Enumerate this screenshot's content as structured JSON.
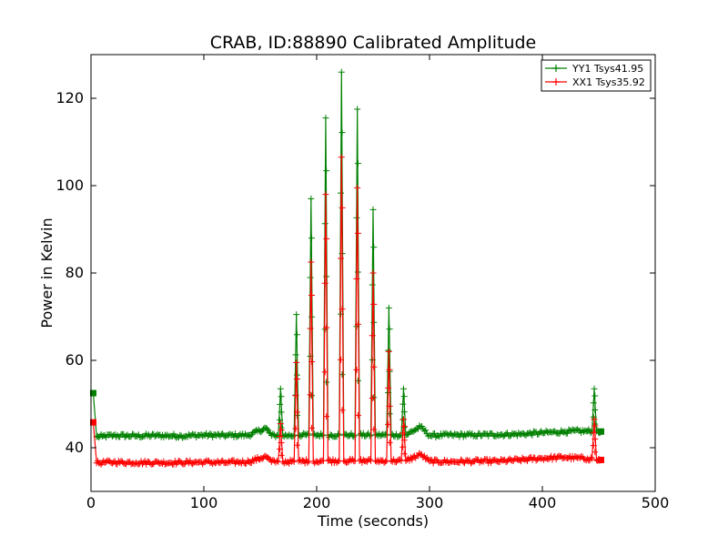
{
  "chart_data": {
    "type": "line",
    "title": "CRAB, ID:88890 Calibrated Amplitude",
    "xlabel": "Time (seconds)",
    "ylabel": "Power in Kelvin",
    "xlim": [
      0,
      500
    ],
    "ylim": [
      30,
      130
    ],
    "xticks": [
      0,
      100,
      200,
      300,
      400,
      500
    ],
    "yticks": [
      40,
      60,
      80,
      100,
      120
    ],
    "grid": false,
    "legend_position": "top-right",
    "series": [
      {
        "name": "YY1 Tsys41.95",
        "color": "#008000",
        "marker": "+",
        "baseline_start": 42.6,
        "baseline_end": 43.9,
        "x_start": 2,
        "x_end": 452,
        "points": [
          [
            2,
            52.5
          ],
          [
            5,
            42.5
          ],
          [
            10,
            42.6
          ],
          [
            20,
            42.8
          ],
          [
            40,
            42.7
          ],
          [
            60,
            42.8
          ],
          [
            80,
            42.7
          ],
          [
            100,
            42.9
          ],
          [
            120,
            42.8
          ],
          [
            140,
            42.9
          ],
          [
            155,
            44.5
          ],
          [
            160,
            42.8
          ],
          [
            166,
            42.8
          ],
          [
            168,
            53.5
          ],
          [
            170,
            42.8
          ],
          [
            180,
            42.8
          ],
          [
            182,
            70.5
          ],
          [
            184,
            42.9
          ],
          [
            193,
            42.9
          ],
          [
            195,
            97.0
          ],
          [
            197,
            42.9
          ],
          [
            206,
            42.9
          ],
          [
            208,
            115.5
          ],
          [
            210,
            42.9
          ],
          [
            220,
            42.9
          ],
          [
            222,
            126.0
          ],
          [
            224,
            42.9
          ],
          [
            234,
            42.9
          ],
          [
            236,
            117.5
          ],
          [
            238,
            42.9
          ],
          [
            248,
            42.9
          ],
          [
            250,
            94.5
          ],
          [
            252,
            42.9
          ],
          [
            262,
            42.9
          ],
          [
            264,
            72.0
          ],
          [
            266,
            42.9
          ],
          [
            275,
            42.9
          ],
          [
            277,
            53.5
          ],
          [
            279,
            42.9
          ],
          [
            292,
            44.8
          ],
          [
            300,
            42.8
          ],
          [
            320,
            42.9
          ],
          [
            340,
            42.9
          ],
          [
            360,
            43.0
          ],
          [
            380,
            43.1
          ],
          [
            400,
            43.4
          ],
          [
            420,
            43.7
          ],
          [
            440,
            43.8
          ],
          [
            444,
            43.8
          ],
          [
            446,
            53.5
          ],
          [
            448,
            43.8
          ],
          [
            452,
            43.7
          ]
        ]
      },
      {
        "name": "XX1 Tsys35.92",
        "color": "#ff0000",
        "marker": "+",
        "baseline_start": 36.6,
        "baseline_end": 37.6,
        "x_start": 2,
        "x_end": 452,
        "points": [
          [
            2,
            45.8
          ],
          [
            5,
            36.5
          ],
          [
            10,
            36.6
          ],
          [
            20,
            36.7
          ],
          [
            40,
            36.6
          ],
          [
            60,
            36.6
          ],
          [
            80,
            36.6
          ],
          [
            100,
            36.7
          ],
          [
            120,
            36.6
          ],
          [
            140,
            36.8
          ],
          [
            155,
            38.0
          ],
          [
            160,
            36.8
          ],
          [
            166,
            36.8
          ],
          [
            168,
            45.5
          ],
          [
            170,
            36.8
          ],
          [
            180,
            36.8
          ],
          [
            182,
            59.5
          ],
          [
            184,
            36.9
          ],
          [
            193,
            36.9
          ],
          [
            195,
            82.5
          ],
          [
            197,
            36.9
          ],
          [
            206,
            37.0
          ],
          [
            208,
            98.0
          ],
          [
            210,
            37.0
          ],
          [
            220,
            37.0
          ],
          [
            222,
            106.5
          ],
          [
            224,
            37.0
          ],
          [
            234,
            37.0
          ],
          [
            236,
            99.5
          ],
          [
            238,
            37.0
          ],
          [
            248,
            37.0
          ],
          [
            250,
            80.0
          ],
          [
            252,
            37.0
          ],
          [
            262,
            37.0
          ],
          [
            264,
            62.0
          ],
          [
            266,
            37.0
          ],
          [
            275,
            37.0
          ],
          [
            277,
            46.5
          ],
          [
            279,
            37.0
          ],
          [
            292,
            38.5
          ],
          [
            300,
            36.9
          ],
          [
            320,
            36.8
          ],
          [
            340,
            36.9
          ],
          [
            360,
            36.9
          ],
          [
            380,
            37.2
          ],
          [
            400,
            37.6
          ],
          [
            420,
            37.8
          ],
          [
            440,
            37.5
          ],
          [
            444,
            37.5
          ],
          [
            446,
            46.5
          ],
          [
            448,
            37.2
          ],
          [
            452,
            37.2
          ]
        ]
      }
    ]
  }
}
